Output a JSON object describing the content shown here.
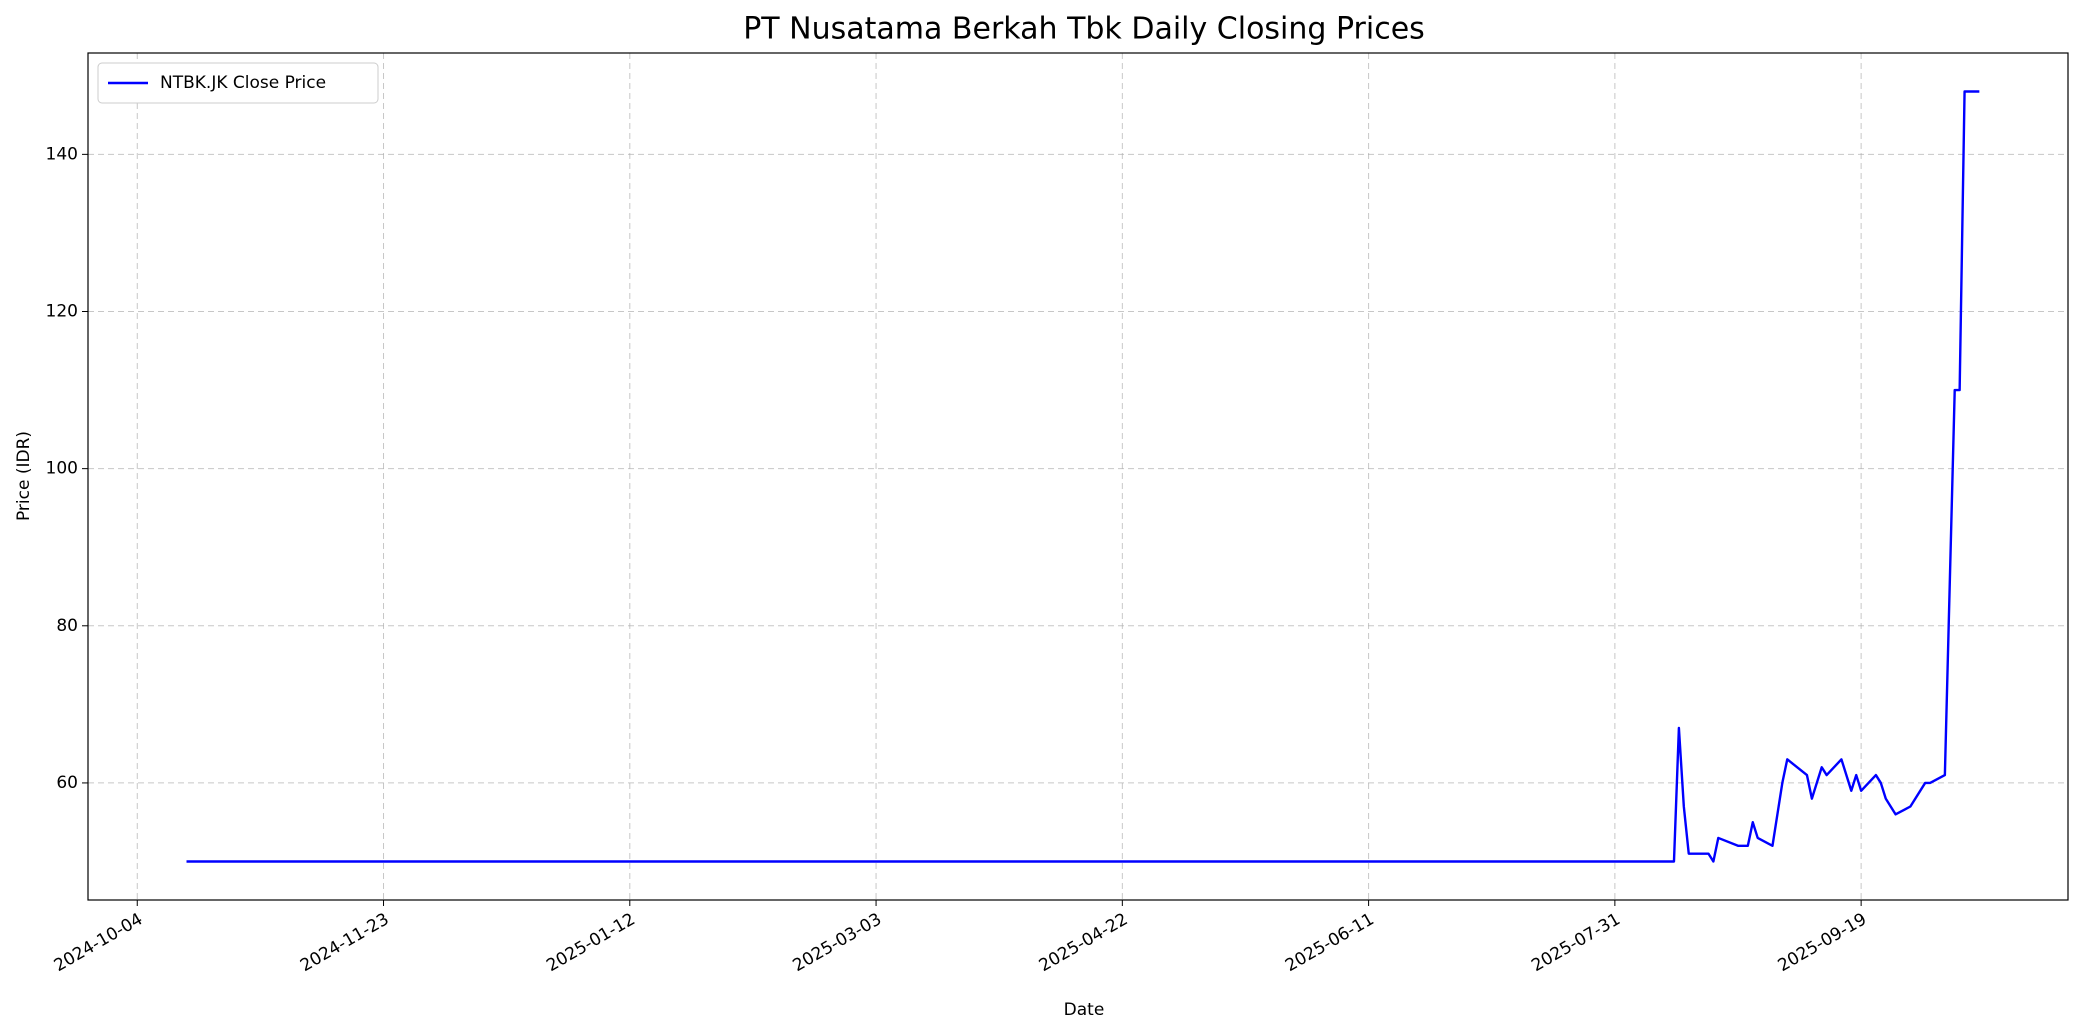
{
  "chart_data": {
    "type": "line",
    "title": "PT Nusatama Berkah Tbk Daily Closing Prices",
    "x_label": "Date",
    "y_label": "Price (IDR)",
    "x": [
      "2024-10-14",
      "2025-08-12",
      "2025-08-13",
      "2025-08-14",
      "2025-08-15",
      "2025-08-19",
      "2025-08-20",
      "2025-08-21",
      "2025-08-25",
      "2025-08-27",
      "2025-08-28",
      "2025-08-29",
      "2025-09-01",
      "2025-09-03",
      "2025-09-04",
      "2025-09-08",
      "2025-09-09",
      "2025-09-11",
      "2025-09-12",
      "2025-09-15",
      "2025-09-17",
      "2025-09-18",
      "2025-09-19",
      "2025-09-22",
      "2025-09-23",
      "2025-09-24",
      "2025-09-26",
      "2025-09-29",
      "2025-10-02",
      "2025-10-03",
      "2025-10-06",
      "2025-10-08",
      "2025-10-09",
      "2025-10-10",
      "2025-10-13"
    ],
    "series": [
      {
        "name": "NTBK.JK Close Price",
        "color": "#0000ff",
        "values": [
          50,
          50,
          67,
          57,
          51,
          51,
          50,
          53,
          52,
          52,
          55,
          53,
          52,
          60,
          63,
          61,
          58,
          62,
          61,
          63,
          59,
          61,
          59,
          61,
          60,
          58,
          56,
          57,
          60,
          60,
          61,
          110,
          110,
          148,
          148
        ]
      }
    ],
    "xlim": [
      "2024-09-24",
      "2025-10-31"
    ],
    "xticks": [
      "2024-10-04",
      "2024-11-23",
      "2025-01-12",
      "2025-03-03",
      "2025-04-22",
      "2025-06-11",
      "2025-07-31",
      "2025-09-19"
    ],
    "ylim": [
      45.1,
      152.9
    ],
    "yticks": [
      60,
      80,
      100,
      120,
      140
    ],
    "grid": true,
    "legend": "upper left"
  }
}
